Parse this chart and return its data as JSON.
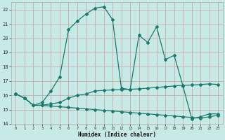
{
  "xlabel": "Humidex (Indice chaleur)",
  "bg_color": "#c8eae6",
  "grid_color": "#c8a0a0",
  "line_color": "#1a7a6e",
  "xlim": [
    -0.5,
    23.5
  ],
  "ylim": [
    14.0,
    22.5
  ],
  "xticks": [
    0,
    1,
    2,
    3,
    4,
    5,
    6,
    7,
    8,
    9,
    10,
    11,
    12,
    13,
    14,
    15,
    16,
    17,
    18,
    19,
    20,
    21,
    22,
    23
  ],
  "yticks": [
    14,
    15,
    16,
    17,
    18,
    19,
    20,
    21,
    22
  ],
  "line1_y": [
    16.1,
    15.8,
    15.3,
    15.3,
    15.25,
    15.2,
    15.15,
    15.1,
    15.05,
    15.0,
    14.95,
    14.9,
    14.85,
    14.8,
    14.75,
    14.7,
    14.65,
    14.6,
    14.55,
    14.5,
    14.45,
    14.4,
    14.5,
    14.6
  ],
  "line2_y": [
    16.1,
    15.8,
    15.3,
    15.3,
    15.4,
    15.5,
    15.8,
    16.0,
    16.1,
    16.3,
    16.35,
    16.38,
    16.4,
    16.42,
    16.45,
    16.5,
    16.55,
    16.6,
    16.65,
    16.7,
    16.72,
    16.75,
    16.8,
    16.75
  ],
  "line3_y": [
    16.1,
    15.8,
    15.3,
    15.5,
    16.3,
    17.3,
    20.6,
    21.2,
    21.7,
    22.1,
    22.2,
    21.3,
    16.5,
    16.4,
    20.2,
    19.7,
    20.8,
    18.5,
    18.8,
    16.65,
    14.35,
    14.5,
    14.7,
    14.7
  ]
}
